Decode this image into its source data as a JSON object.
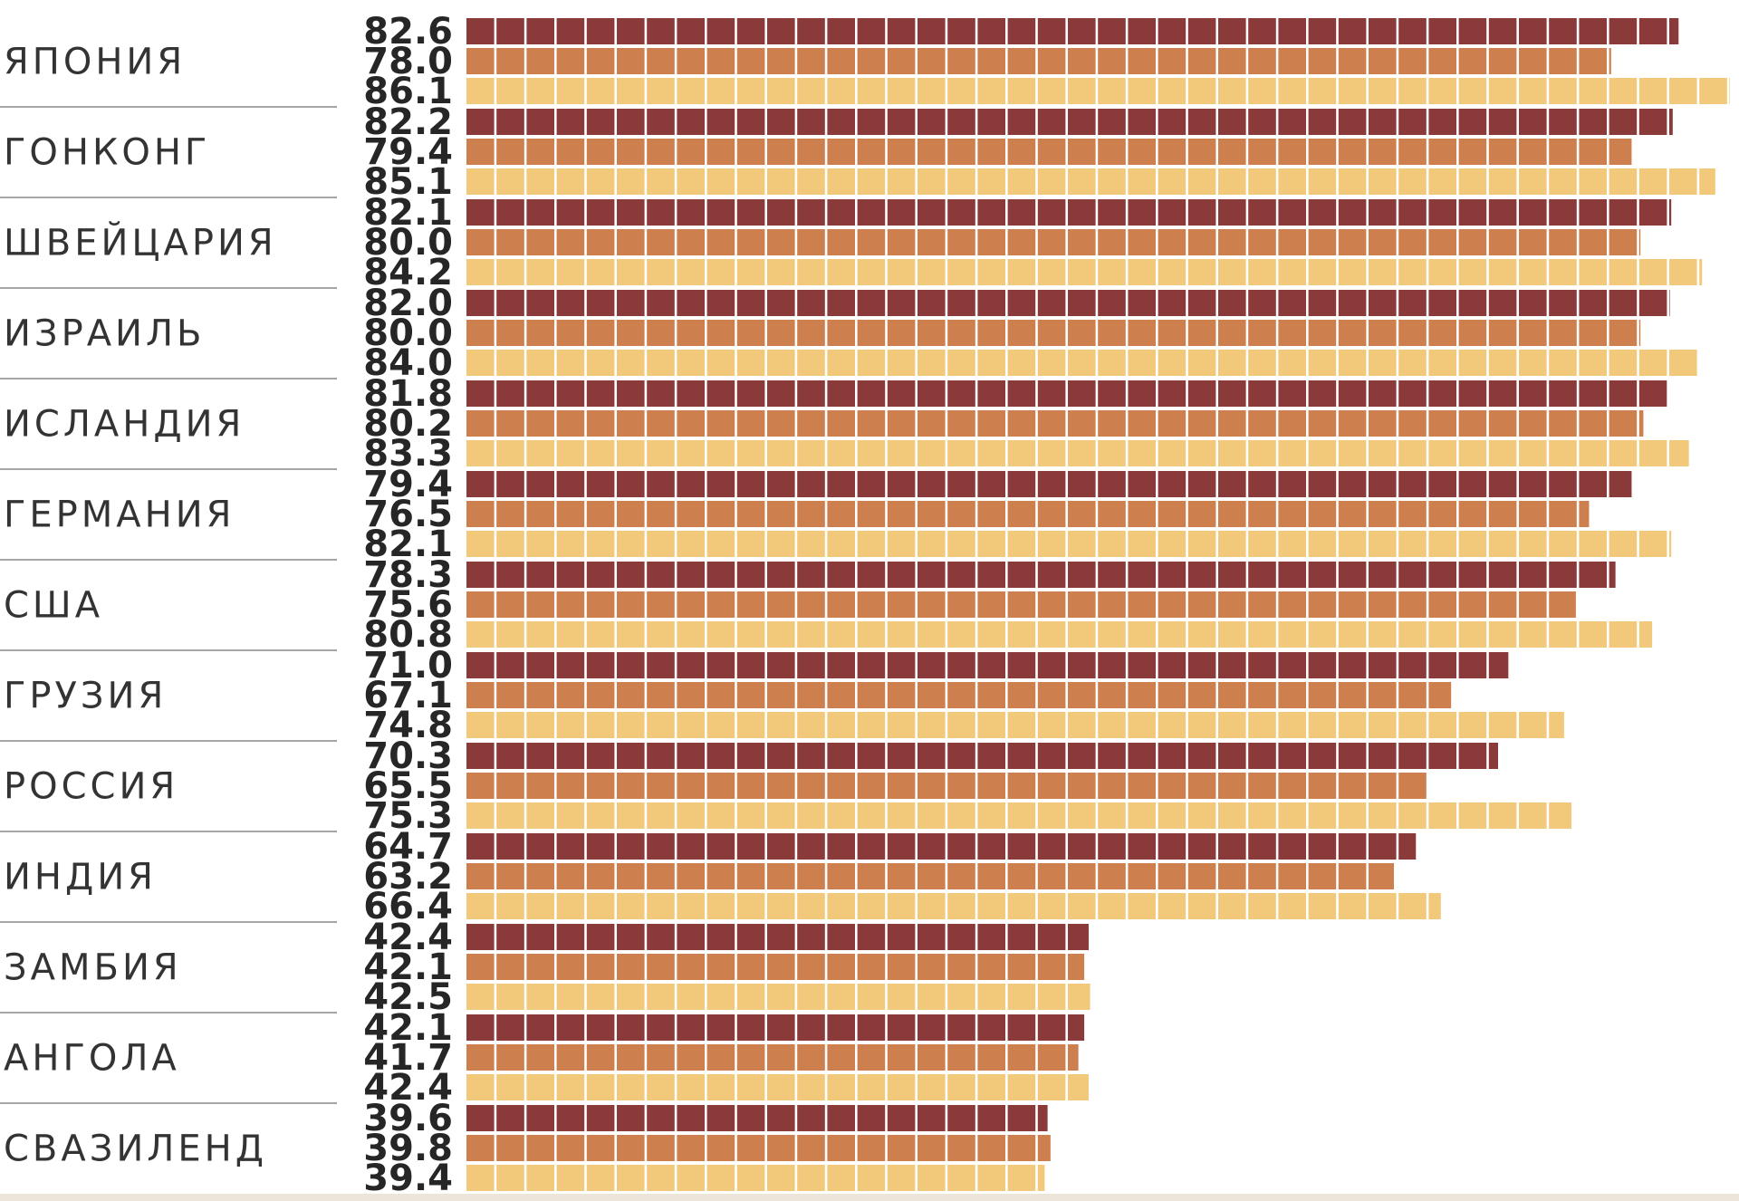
{
  "chart_data": {
    "type": "bar",
    "orientation": "horizontal",
    "title": "",
    "xlabel": "",
    "ylabel": "",
    "xlim": [
      0,
      86.1
    ],
    "grid": false,
    "legend": "none",
    "categories": [
      "ЯПОНИЯ",
      "ГОНКОНГ",
      "ШВЕЙЦАРИЯ",
      "ИЗРАИЛЬ",
      "ИСЛАНДИЯ",
      "ГЕРМАНИЯ",
      "США",
      "ГРУЗИЯ",
      "РОССИЯ",
      "ИНДИЯ",
      "ЗАМБИЯ",
      "АНГОЛА",
      "СВАЗИЛЕНД"
    ],
    "series": [
      {
        "color": "#8b3a3a",
        "values": [
          82.6,
          82.2,
          82.1,
          82.0,
          81.8,
          79.4,
          78.3,
          71.0,
          70.3,
          64.7,
          42.4,
          42.1,
          39.6
        ],
        "labels": [
          "82.6",
          "82.2",
          "82.1",
          "82.0",
          "81.8",
          "79.4",
          "78.3",
          "71.0",
          "70.3",
          "64.7",
          "42.4",
          "42.1",
          "39.6"
        ]
      },
      {
        "color": "#cd7f4e",
        "values": [
          78.0,
          79.4,
          80.0,
          80.0,
          80.2,
          76.5,
          75.6,
          67.1,
          65.5,
          63.2,
          42.1,
          41.7,
          39.8
        ],
        "labels": [
          "78.0",
          "79.4",
          "80.0",
          "80.0",
          "80.2",
          "76.5",
          "75.6",
          "67.1",
          "65.5",
          "63.2",
          "42.1",
          "41.7",
          "39.8"
        ]
      },
      {
        "color": "#f2c97a",
        "values": [
          86.1,
          85.1,
          84.2,
          84.0,
          83.3,
          82.1,
          80.8,
          74.8,
          75.3,
          66.4,
          42.5,
          42.4,
          39.4
        ],
        "labels": [
          "86.1",
          "85.1",
          "84.2",
          "84.0",
          "83.3",
          "82.1",
          "80.8",
          "74.8",
          "75.3",
          "66.4",
          "42.5",
          "42.4",
          "39.4"
        ]
      }
    ]
  }
}
